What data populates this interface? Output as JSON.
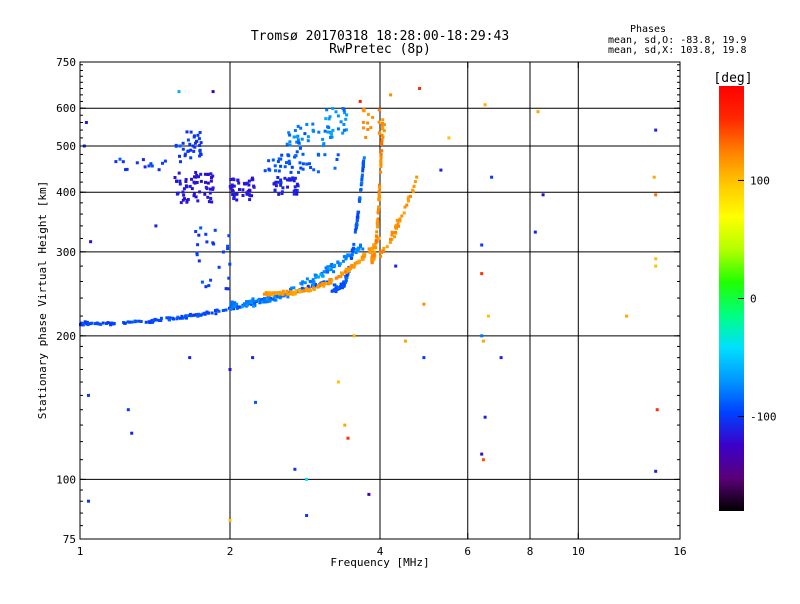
{
  "chart_data": {
    "type": "scatter",
    "title": "Tromsø 20170318 18:28:00-18:29:43",
    "subtitle": "RwPretec (8p)",
    "phases": {
      "heading": "Phases",
      "line_o": "mean, sd,O: -83.8, 19.9",
      "line_x": "mean, sd,X: 103.8, 19.8"
    },
    "xlabel": "Frequency [MHz]",
    "ylabel": "Stationary phase Virtual Height [km]",
    "x_scale": "log",
    "y_scale": "log",
    "xlim": [
      1,
      16
    ],
    "ylim": [
      75,
      750
    ],
    "x_ticks": [
      {
        "value": 1,
        "label": "1"
      },
      {
        "value": 2,
        "label": "2"
      },
      {
        "value": 4,
        "label": "4"
      },
      {
        "value": 6,
        "label": "6"
      },
      {
        "value": 8,
        "label": "8"
      },
      {
        "value": 10,
        "label": "10"
      },
      {
        "value": 16,
        "label": "16"
      }
    ],
    "x_grid": [
      2,
      4,
      6,
      8,
      10
    ],
    "y_ticks": [
      {
        "value": 75,
        "label": "75"
      },
      {
        "value": 100,
        "label": "100"
      },
      {
        "value": 200,
        "label": "200"
      },
      {
        "value": 300,
        "label": "300"
      },
      {
        "value": 400,
        "label": "400"
      },
      {
        "value": 500,
        "label": "500"
      },
      {
        "value": 600,
        "label": "600"
      },
      {
        "value": 750,
        "label": "750"
      }
    ],
    "y_grid": [
      100,
      200,
      300,
      400,
      500,
      600
    ],
    "colorbar": {
      "label": "[deg]",
      "range": [
        -180,
        180
      ],
      "ticks": [
        {
          "value": 100,
          "label": "100"
        },
        {
          "value": 0,
          "label": "0"
        },
        {
          "value": -100,
          "label": "-100"
        }
      ],
      "colormap": [
        "#000000",
        "#5a0078",
        "#3c00c8",
        "#0040ff",
        "#0098ff",
        "#00e0ff",
        "#00ff80",
        "#20ff00",
        "#b4ff00",
        "#ffff00",
        "#ffc800",
        "#ff8000",
        "#ff2800",
        "#ff0000"
      ]
    },
    "traces": [
      {
        "name_hint": "o-low",
        "x_range": [
          1.0,
          3.2
        ],
        "h0": 212,
        "h1": 262,
        "curve": 2.2,
        "n": 170,
        "phase": -95,
        "phase_sd": 12,
        "spread": 0.012
      },
      {
        "name_hint": "o-upper",
        "x_range": [
          2.0,
          3.7
        ],
        "h0": 232,
        "h1": 310,
        "curve": 2.0,
        "n": 130,
        "phase": -75,
        "phase_sd": 18,
        "spread": 0.03
      },
      {
        "name_hint": "o-cusp",
        "x_range": [
          3.2,
          3.72
        ],
        "h0": 250,
        "h1": 480,
        "curve": 3.5,
        "n": 90,
        "phase": -90,
        "phase_sd": 15,
        "spread": 0.03
      },
      {
        "name_hint": "x-low",
        "x_range": [
          2.3,
          4.0
        ],
        "h0": 245,
        "h1": 320,
        "curve": 3.0,
        "n": 140,
        "phase": 115,
        "phase_sd": 15,
        "spread": 0.015
      },
      {
        "name_hint": "x-cusp",
        "x_range": [
          3.85,
          4.05
        ],
        "h0": 290,
        "h1": 560,
        "curve": 2.5,
        "n": 80,
        "phase": 120,
        "phase_sd": 12,
        "spread": 0.04
      },
      {
        "name_hint": "x-upper",
        "x_range": [
          4.0,
          4.8
        ],
        "h0": 300,
        "h1": 440,
        "curve": 1.5,
        "n": 40,
        "phase": 118,
        "phase_sd": 12,
        "spread": 0.04
      }
    ],
    "clusters": [
      {
        "x": [
          1.55,
          1.85
        ],
        "y": [
          380,
          440
        ],
        "n": 60,
        "phase": -115,
        "phase_sd": 10
      },
      {
        "x": [
          1.55,
          1.75
        ],
        "y": [
          460,
          540
        ],
        "n": 35,
        "phase": -100,
        "phase_sd": 15
      },
      {
        "x": [
          2.0,
          2.25
        ],
        "y": [
          385,
          430
        ],
        "n": 45,
        "phase": -115,
        "phase_sd": 10
      },
      {
        "x": [
          2.45,
          2.75
        ],
        "y": [
          395,
          430
        ],
        "n": 35,
        "phase": -110,
        "phase_sd": 12
      },
      {
        "x": [
          2.3,
          3.3
        ],
        "y": [
          440,
          480
        ],
        "n": 40,
        "phase": -90,
        "phase_sd": 15
      },
      {
        "x": [
          2.6,
          3.2
        ],
        "y": [
          480,
          560
        ],
        "n": 35,
        "phase": -80,
        "phase_sd": 20
      },
      {
        "x": [
          1.1,
          1.5
        ],
        "y": [
          440,
          470
        ],
        "n": 14,
        "phase": -100,
        "phase_sd": 15
      },
      {
        "x": [
          3.1,
          3.45
        ],
        "y": [
          520,
          600
        ],
        "n": 25,
        "phase": -70,
        "phase_sd": 20
      },
      {
        "x": [
          3.7,
          4.1
        ],
        "y": [
          520,
          600
        ],
        "n": 18,
        "phase": 120,
        "phase_sd": 10
      },
      {
        "x": [
          1.7,
          2.0
        ],
        "y": [
          250,
          340
        ],
        "n": 25,
        "phase": -100,
        "phase_sd": 15
      }
    ],
    "scatter_points": [
      {
        "x": 1.03,
        "y": 560,
        "p": -110
      },
      {
        "x": 1.05,
        "y": 315,
        "p": -120
      },
      {
        "x": 1.02,
        "y": 500,
        "p": -100
      },
      {
        "x": 1.04,
        "y": 150,
        "p": -100
      },
      {
        "x": 1.04,
        "y": 90,
        "p": -100
      },
      {
        "x": 1.25,
        "y": 140,
        "p": -100
      },
      {
        "x": 1.27,
        "y": 125,
        "p": -110
      },
      {
        "x": 1.42,
        "y": 340,
        "p": -110
      },
      {
        "x": 1.66,
        "y": 180,
        "p": -110
      },
      {
        "x": 1.58,
        "y": 650,
        "p": -60
      },
      {
        "x": 1.85,
        "y": 650,
        "p": -130
      },
      {
        "x": 2.0,
        "y": 170,
        "p": -120
      },
      {
        "x": 2.22,
        "y": 180,
        "p": -110
      },
      {
        "x": 2.25,
        "y": 145,
        "p": -90
      },
      {
        "x": 2.7,
        "y": 105,
        "p": -100
      },
      {
        "x": 2.85,
        "y": 100,
        "p": -40
      },
      {
        "x": 2.85,
        "y": 84,
        "p": -100
      },
      {
        "x": 2.0,
        "y": 82,
        "p": 100
      },
      {
        "x": 3.3,
        "y": 160,
        "p": 100
      },
      {
        "x": 3.4,
        "y": 130,
        "p": 110
      },
      {
        "x": 3.45,
        "y": 122,
        "p": 150
      },
      {
        "x": 3.8,
        "y": 93,
        "p": -130
      },
      {
        "x": 3.55,
        "y": 200,
        "p": 105
      },
      {
        "x": 4.3,
        "y": 280,
        "p": -110
      },
      {
        "x": 4.5,
        "y": 195,
        "p": 110
      },
      {
        "x": 4.9,
        "y": 180,
        "p": -100
      },
      {
        "x": 4.9,
        "y": 233,
        "p": 120
      },
      {
        "x": 5.5,
        "y": 520,
        "p": 100
      },
      {
        "x": 5.3,
        "y": 445,
        "p": -110
      },
      {
        "x": 6.4,
        "y": 310,
        "p": -100
      },
      {
        "x": 6.4,
        "y": 270,
        "p": 150
      },
      {
        "x": 6.4,
        "y": 200,
        "p": -80
      },
      {
        "x": 6.45,
        "y": 195,
        "p": 110
      },
      {
        "x": 6.5,
        "y": 135,
        "p": -110
      },
      {
        "x": 6.4,
        "y": 113,
        "p": -120
      },
      {
        "x": 6.45,
        "y": 110,
        "p": 140
      },
      {
        "x": 6.5,
        "y": 610,
        "p": 105
      },
      {
        "x": 6.6,
        "y": 220,
        "p": 100
      },
      {
        "x": 6.7,
        "y": 430,
        "p": -100
      },
      {
        "x": 7.0,
        "y": 180,
        "p": -110
      },
      {
        "x": 8.2,
        "y": 330,
        "p": -110
      },
      {
        "x": 8.5,
        "y": 395,
        "p": -120
      },
      {
        "x": 8.3,
        "y": 590,
        "p": 110
      },
      {
        "x": 4.8,
        "y": 660,
        "p": 150
      },
      {
        "x": 4.2,
        "y": 640,
        "p": 120
      },
      {
        "x": 12.5,
        "y": 220,
        "p": 110
      },
      {
        "x": 14.3,
        "y": 540,
        "p": -110
      },
      {
        "x": 14.3,
        "y": 395,
        "p": 130
      },
      {
        "x": 14.2,
        "y": 430,
        "p": 110
      },
      {
        "x": 14.3,
        "y": 290,
        "p": 100
      },
      {
        "x": 14.3,
        "y": 280,
        "p": 100
      },
      {
        "x": 14.4,
        "y": 140,
        "p": 150
      },
      {
        "x": 14.3,
        "y": 104,
        "p": -110
      },
      {
        "x": 3.65,
        "y": 620,
        "p": 160
      }
    ]
  }
}
